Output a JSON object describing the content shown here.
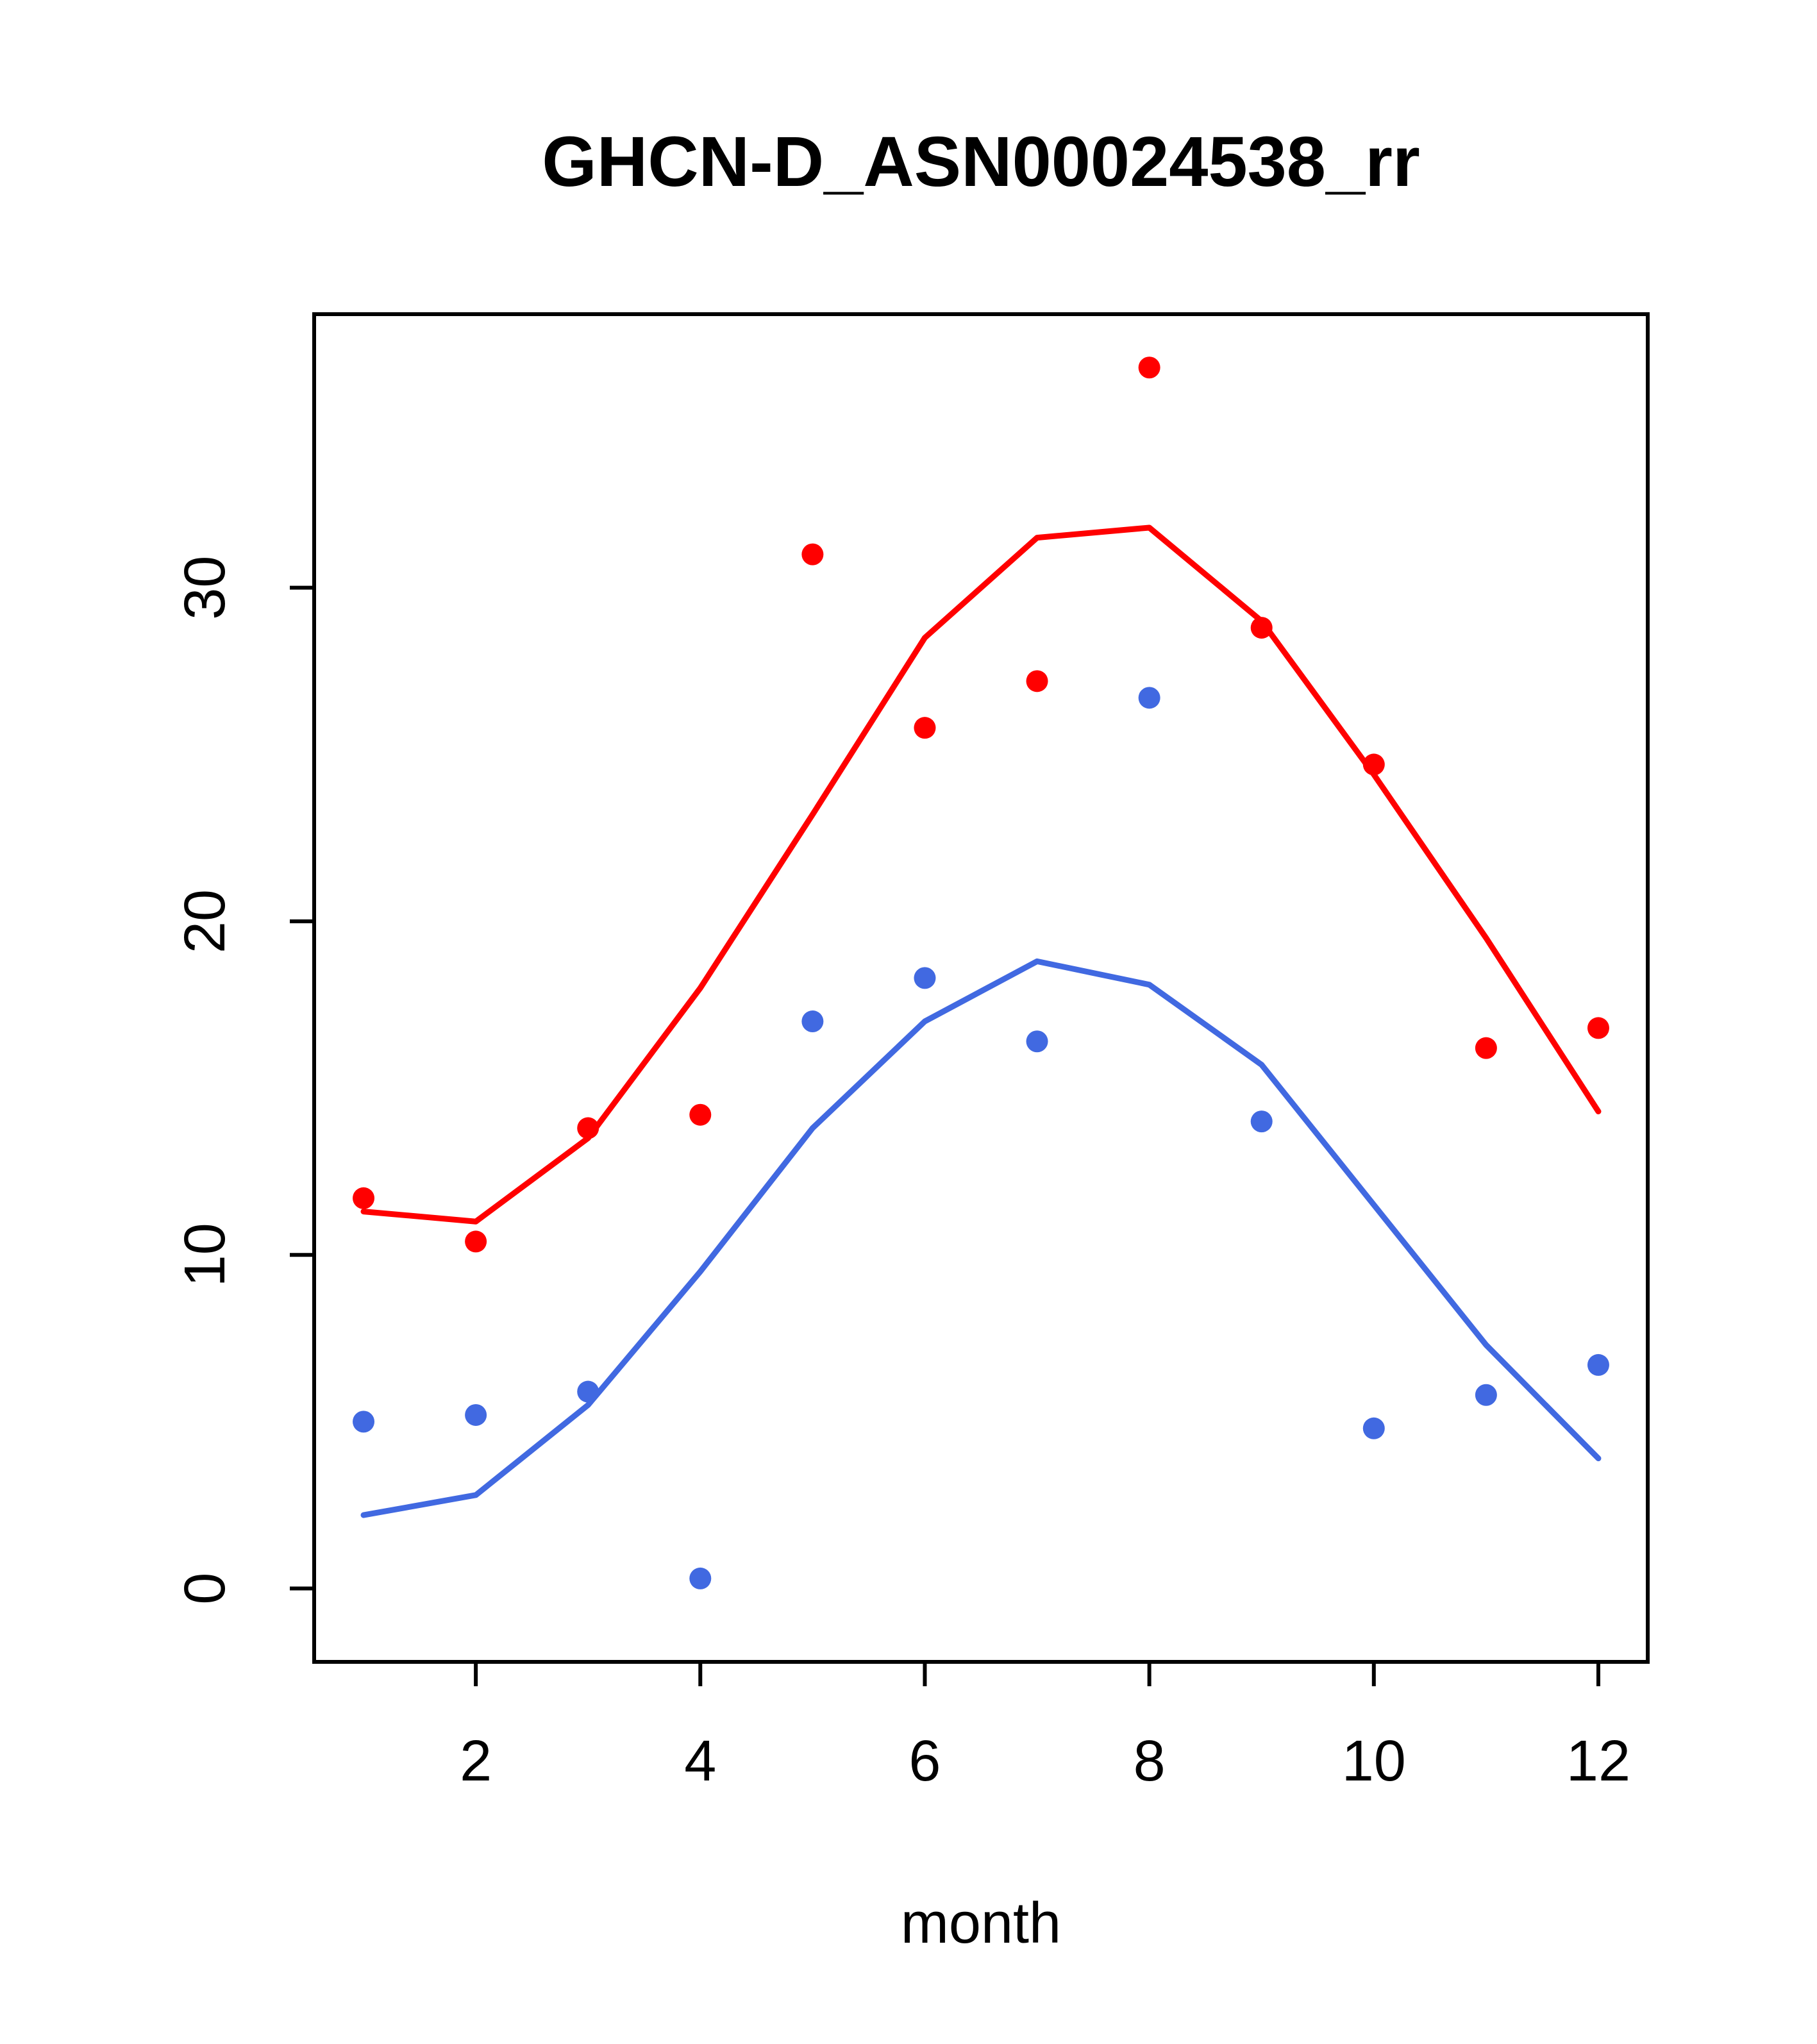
{
  "chart_data": {
    "type": "scatter",
    "title": "GHCN-D_ASN00024538_rr",
    "xlabel": "month",
    "ylabel": "",
    "xlim": [
      0.56,
      12.44
    ],
    "ylim": [
      -2.2,
      38.2
    ],
    "xticks": [
      2,
      4,
      6,
      8,
      10,
      12
    ],
    "yticks": [
      0,
      10,
      20,
      30
    ],
    "grid": false,
    "legend": "none",
    "x": [
      1,
      2,
      3,
      4,
      5,
      6,
      7,
      8,
      9,
      10,
      11,
      12
    ],
    "series": [
      {
        "name": "red-line",
        "type": "line",
        "color": "#ff0000",
        "values": [
          11.3,
          11.0,
          13.5,
          18.0,
          23.2,
          28.5,
          31.5,
          31.8,
          29.0,
          24.4,
          19.5,
          14.3
        ]
      },
      {
        "name": "blue-line",
        "type": "line",
        "color": "#4169e1",
        "values": [
          2.2,
          2.8,
          5.5,
          9.5,
          13.8,
          17.0,
          18.8,
          18.1,
          15.7,
          11.5,
          7.3,
          3.9
        ]
      },
      {
        "name": "red-points",
        "type": "points",
        "color": "#ff0000",
        "values": [
          11.7,
          10.4,
          13.8,
          14.2,
          31.0,
          25.8,
          27.2,
          36.6,
          28.8,
          24.7,
          16.2,
          16.8
        ]
      },
      {
        "name": "blue-points",
        "type": "points",
        "color": "#4169e1",
        "values": [
          5.0,
          5.2,
          5.9,
          0.3,
          17.0,
          18.3,
          16.4,
          26.7,
          14.0,
          4.8,
          5.8,
          6.7
        ]
      }
    ]
  }
}
